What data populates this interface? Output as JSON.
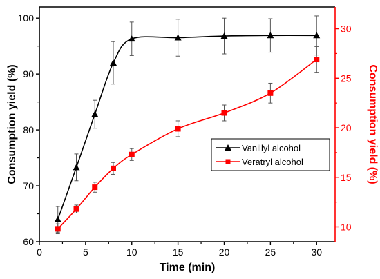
{
  "chart_data": {
    "type": "line",
    "xlabel": "Time (min)",
    "ylabel_left": "Consumption yield (%)",
    "ylabel_right": "Consumption yield (%)",
    "xlim": [
      0,
      32
    ],
    "ylim_left": [
      60,
      102
    ],
    "ylim_right": [
      8.5,
      32.2
    ],
    "xticks": [
      0,
      5,
      10,
      15,
      20,
      25,
      30
    ],
    "yticks_left": [
      60,
      70,
      80,
      90,
      100
    ],
    "yticks_right": [
      10,
      15,
      20,
      25,
      30
    ],
    "legend_position": "center-right",
    "colors": {
      "left_axis": "#000000",
      "right_axis": "#ff0000"
    },
    "series": [
      {
        "name": "Vanillyl alcohol",
        "axis": "left",
        "color": "#000000",
        "marker": "triangle",
        "x": [
          2,
          4,
          6,
          8,
          10,
          15,
          20,
          25,
          30
        ],
        "y": [
          64.0,
          73.3,
          82.8,
          92.0,
          96.3,
          96.5,
          96.8,
          96.9,
          96.9
        ],
        "error": [
          2.3,
          2.4,
          2.5,
          3.8,
          3.0,
          3.3,
          3.2,
          3.0,
          3.5
        ]
      },
      {
        "name": "Veratryl alcohol",
        "axis": "right",
        "color": "#ff0000",
        "marker": "square",
        "x": [
          2,
          4,
          6,
          8,
          10,
          15,
          20,
          25,
          30
        ],
        "y": [
          9.8,
          11.8,
          14.0,
          15.9,
          17.3,
          19.9,
          21.5,
          23.5,
          26.9
        ],
        "error": [
          0.5,
          0.4,
          0.5,
          0.6,
          0.6,
          0.8,
          0.8,
          1.0,
          1.3
        ]
      }
    ]
  }
}
